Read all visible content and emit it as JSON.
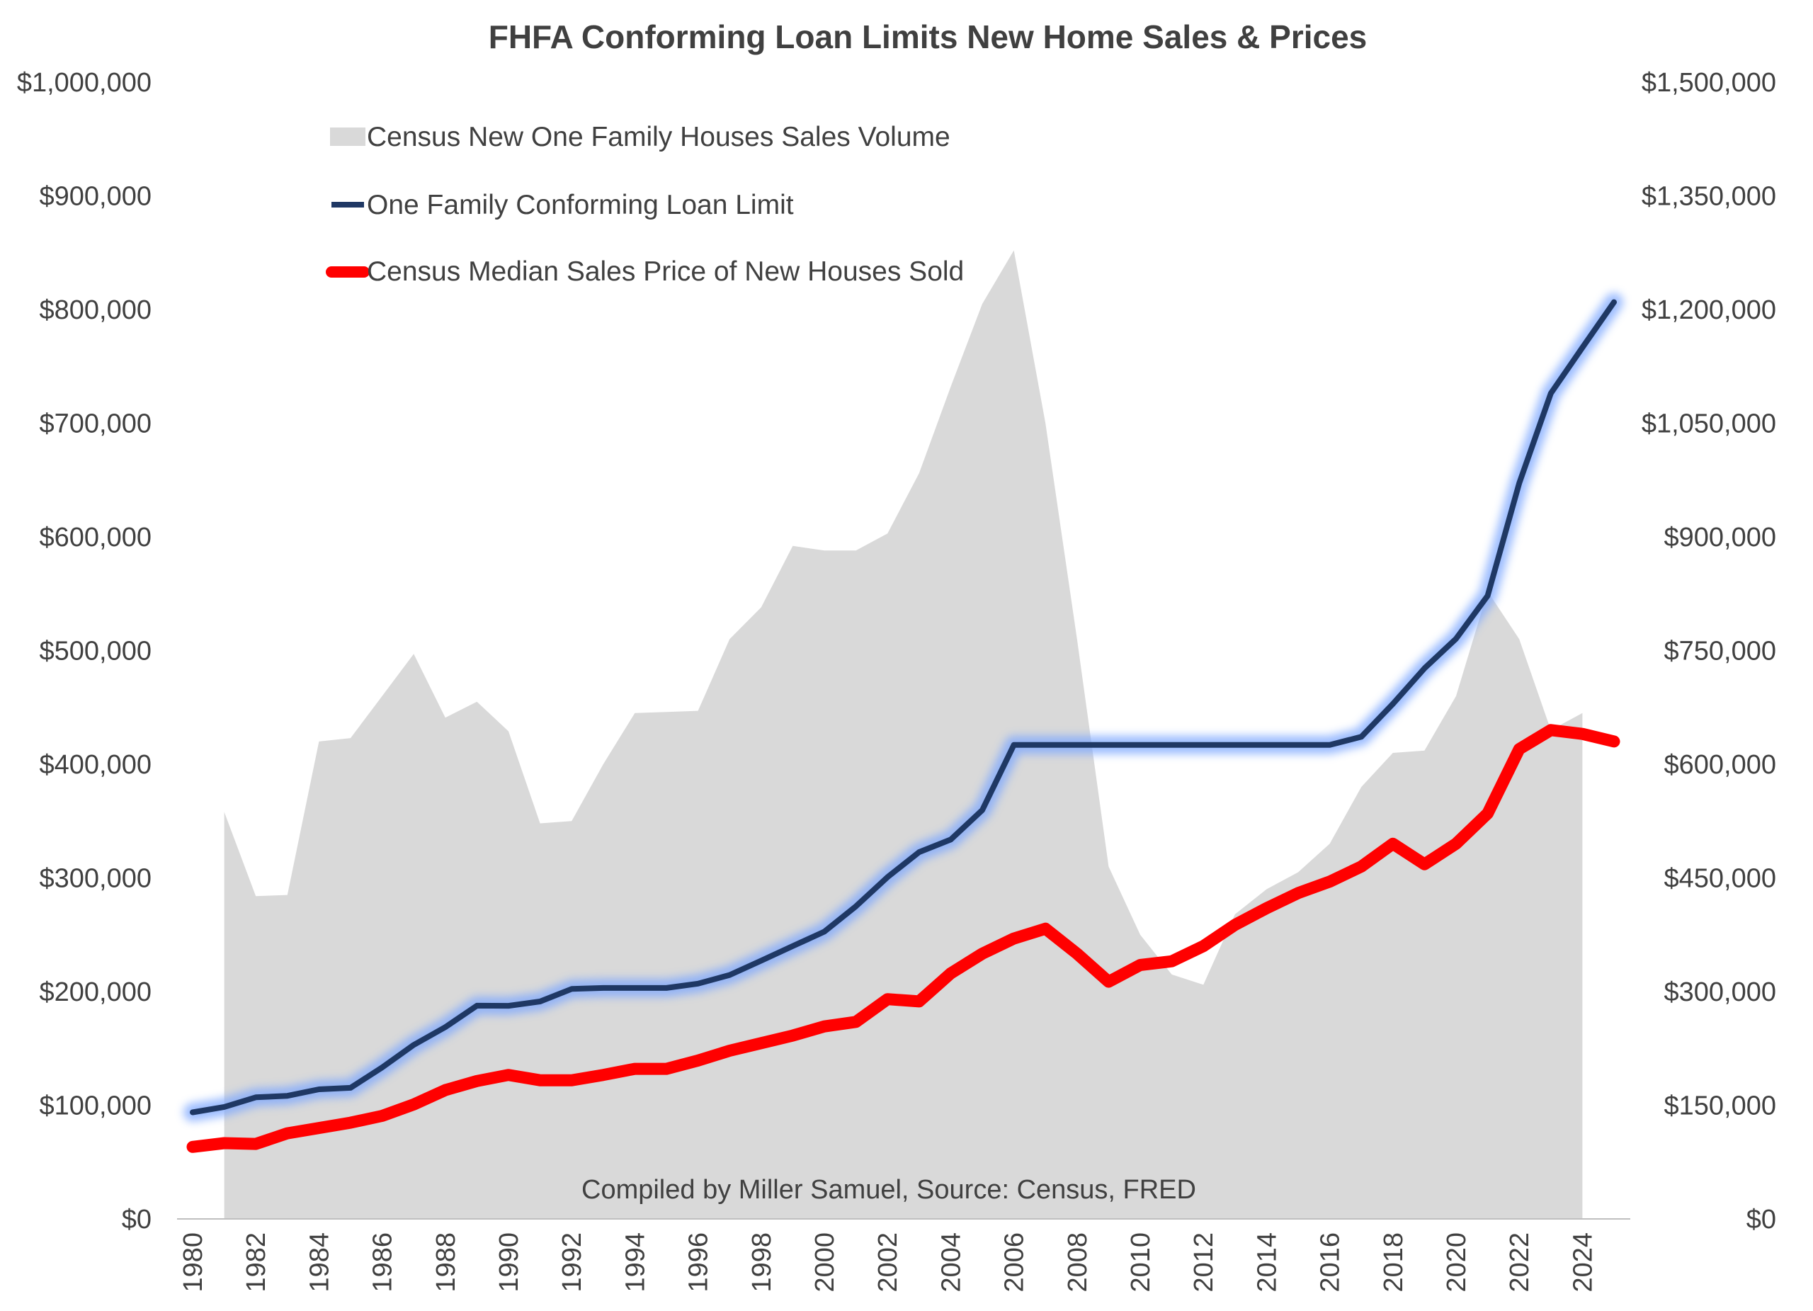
{
  "chart_data": {
    "type": "line",
    "title": "FHFA Conforming Loan Limits New Home Sales & Prices",
    "note": "Compiled by Miller Samuel, Source: Census, FRED",
    "x_ticks": [
      "1980",
      "1982",
      "1984",
      "1986",
      "1988",
      "1990",
      "1992",
      "1994",
      "1996",
      "1998",
      "2000",
      "2002",
      "2004",
      "2006",
      "2008",
      "2010",
      "2012",
      "2014",
      "2016",
      "2018",
      "2020",
      "2022",
      "2024"
    ],
    "y_left_ticks": [
      "$0",
      "$100,000",
      "$200,000",
      "$300,000",
      "$400,000",
      "$500,000",
      "$600,000",
      "$700,000",
      "$800,000",
      "$900,000",
      "$1,000,000"
    ],
    "y_right_ticks": [
      "$0",
      "$150,000",
      "$300,000",
      "$450,000",
      "$600,000",
      "$750,000",
      "$900,000",
      "$1,050,000",
      "$1,200,000",
      "$1,350,000",
      "$1,500,000"
    ],
    "y_left_range": [
      0,
      1000000
    ],
    "y_right_range": [
      0,
      1500000
    ],
    "grid": false,
    "legend_position": "top-left",
    "colors": {
      "area": "#d9d9d9",
      "loan_limit": "#1f3864",
      "loan_limit_glow": "#7da7ff",
      "median_price": "#ff0000",
      "text": "#404040"
    },
    "series": [
      {
        "name": "Census New One Family Houses Sales Volume",
        "type": "area",
        "axis": "left",
        "x": [
          1981,
          1982,
          1983,
          1984,
          1985,
          1986,
          1987,
          1988,
          1989,
          1990,
          1991,
          1992,
          1993,
          1994,
          1995,
          1996,
          1997,
          1998,
          1999,
          2000,
          2001,
          2002,
          2003,
          2004,
          2005,
          2006,
          2007,
          2008,
          2009,
          2010,
          2011,
          2012,
          2013,
          2014,
          2015,
          2016,
          2017,
          2018,
          2019,
          2020,
          2021,
          2022,
          2023,
          2024
        ],
        "values": [
          358000,
          284000,
          285000,
          420000,
          423000,
          460000,
          497000,
          441000,
          455000,
          429000,
          348000,
          350000,
          400000,
          445000,
          446000,
          447000,
          510000,
          538000,
          592000,
          588000,
          588000,
          603000,
          656000,
          732000,
          805000,
          852000,
          700000,
          510000,
          310000,
          250000,
          215000,
          206000,
          268000,
          290000,
          305000,
          330000,
          380000,
          410000,
          412000,
          460000,
          552000,
          510000,
          430000,
          445000
        ]
      },
      {
        "name": "One Family Conforming Loan Limit",
        "type": "line",
        "axis": "left",
        "x": [
          1980,
          1981,
          1982,
          1983,
          1984,
          1985,
          1986,
          1987,
          1988,
          1989,
          1990,
          1991,
          1992,
          1993,
          1994,
          1995,
          1996,
          1997,
          1998,
          1999,
          2000,
          2001,
          2002,
          2003,
          2004,
          2005,
          2006,
          2007,
          2008,
          2009,
          2010,
          2011,
          2012,
          2013,
          2014,
          2015,
          2016,
          2017,
          2018,
          2019,
          2020,
          2021,
          2022,
          2023,
          2024,
          2025
        ],
        "values": [
          93750,
          98500,
          107000,
          108300,
          114000,
          115300,
          133250,
          153100,
          168700,
          187600,
          187450,
          191250,
          202300,
          203150,
          203150,
          203150,
          207000,
          214600,
          227150,
          240000,
          252700,
          275000,
          300700,
          322700,
          333700,
          359650,
          417000,
          417000,
          417000,
          417000,
          417000,
          417000,
          417000,
          417000,
          417000,
          417000,
          417000,
          424100,
          453100,
          484350,
          510400,
          548250,
          647200,
          726200,
          766550,
          806500
        ]
      },
      {
        "name": "Census Median Sales Price of New Houses Sold",
        "type": "line",
        "axis": "right",
        "x": [
          1980,
          1981,
          1982,
          1983,
          1984,
          1985,
          1986,
          1987,
          1988,
          1989,
          1990,
          1991,
          1992,
          1993,
          1994,
          1995,
          1996,
          1997,
          1998,
          1999,
          2000,
          2001,
          2002,
          2003,
          2004,
          2005,
          2006,
          2007,
          2008,
          2009,
          2010,
          2011,
          2012,
          2013,
          2014,
          2015,
          2016,
          2017,
          2018,
          2019,
          2020,
          2021,
          2022,
          2023,
          2024,
          2025
        ],
        "values": [
          95000,
          100000,
          99000,
          113000,
          120000,
          127000,
          136000,
          151000,
          170000,
          182000,
          190000,
          183000,
          183000,
          190000,
          198000,
          198000,
          209000,
          222000,
          232000,
          242000,
          254000,
          260000,
          290000,
          287000,
          324000,
          350000,
          370000,
          383000,
          350000,
          313000,
          335000,
          340000,
          360000,
          388000,
          410000,
          430000,
          445000,
          465000,
          495000,
          468000,
          495000,
          535000,
          620000,
          645000,
          640000,
          630000
        ]
      }
    ]
  }
}
